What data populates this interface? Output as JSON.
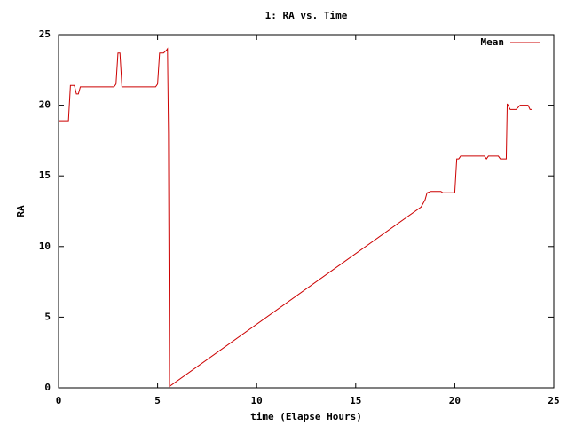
{
  "chart_data": {
    "type": "line",
    "title": "1: RA vs. Time",
    "x_label": "time (Elapse Hours)",
    "y_label": "RA",
    "x": [
      0,
      0.5,
      0.6,
      0.8,
      0.9,
      1.0,
      1.1,
      2.8,
      2.9,
      3.0,
      3.1,
      3.2,
      4.9,
      5.0,
      5.1,
      5.3,
      5.45,
      5.5,
      5.55,
      5.6,
      18.3,
      18.5,
      18.6,
      18.8,
      19.3,
      19.4,
      20.0,
      20.1,
      20.2,
      20.3,
      21.5,
      21.6,
      21.7,
      22.2,
      22.3,
      22.6,
      22.65,
      22.8,
      23.1,
      23.3,
      23.7,
      23.8,
      23.9
    ],
    "series": [
      {
        "name": "Mean",
        "color": "#cc0000",
        "values": [
          18.9,
          18.9,
          21.4,
          21.4,
          20.8,
          20.8,
          21.3,
          21.3,
          21.5,
          23.7,
          23.7,
          21.3,
          21.3,
          21.5,
          23.7,
          23.7,
          23.9,
          24.0,
          18.0,
          0.1,
          12.8,
          13.3,
          13.8,
          13.9,
          13.9,
          13.8,
          13.8,
          16.2,
          16.2,
          16.4,
          16.4,
          16.2,
          16.4,
          16.4,
          16.2,
          16.2,
          20.1,
          19.7,
          19.7,
          20.0,
          20.0,
          19.7,
          19.7
        ]
      }
    ],
    "xlim": [
      0,
      25
    ],
    "xticks": [
      0,
      5,
      10,
      15,
      20,
      25
    ],
    "ylim": [
      0,
      25
    ],
    "yticks": [
      0,
      5,
      10,
      15,
      20,
      25
    ],
    "grid": false,
    "legend": "upper right"
  }
}
